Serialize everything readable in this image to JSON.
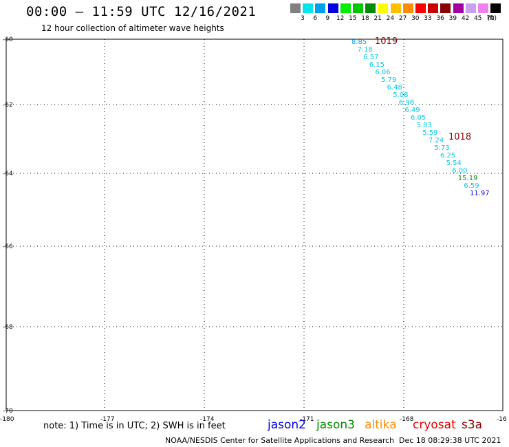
{
  "header": {
    "title": "00:00 – 11:59 UTC 12/16/2021",
    "subtitle": "12 hour collection of altimeter wave heights"
  },
  "legend": {
    "unit": "(ft)",
    "items": [
      {
        "color": "#808080",
        "label": "3"
      },
      {
        "color": "#00e5ee",
        "label": "6"
      },
      {
        "color": "#00a0f0",
        "label": "9"
      },
      {
        "color": "#0000e0",
        "label": "12"
      },
      {
        "color": "#00ee00",
        "label": "15"
      },
      {
        "color": "#00c800",
        "label": "18"
      },
      {
        "color": "#008b00",
        "label": "21"
      },
      {
        "color": "#ffff00",
        "label": "24"
      },
      {
        "color": "#ffc000",
        "label": "27"
      },
      {
        "color": "#ff8c00",
        "label": "30"
      },
      {
        "color": "#ff0000",
        "label": "33"
      },
      {
        "color": "#cd0000",
        "label": "36"
      },
      {
        "color": "#8b0000",
        "label": "39"
      },
      {
        "color": "#a000a0",
        "label": "42"
      },
      {
        "color": "#c8a0f0",
        "label": "45"
      },
      {
        "color": "#f080f0",
        "label": "70"
      },
      {
        "color": "#000000",
        "label": ""
      }
    ]
  },
  "map": {
    "lat_labels": [
      "-60",
      "-62",
      "-64",
      "-66",
      "-68",
      "-70"
    ],
    "lon_labels": [
      "-180",
      "-177",
      "-174",
      "-171",
      "-168",
      "-16"
    ],
    "pressure_labels": [
      {
        "text": "1019",
        "color": "#8b0000"
      },
      {
        "text": "1018",
        "color": "#8b0000"
      }
    ],
    "wave_heights": [
      {
        "value": "8.85",
        "color": "#00a0f0"
      },
      {
        "value": "7.18",
        "color": "#00c8e8"
      },
      {
        "value": "6.57",
        "color": "#00c8e8"
      },
      {
        "value": "6.15",
        "color": "#00c8e8"
      },
      {
        "value": "6.06",
        "color": "#00c8e8"
      },
      {
        "value": "5.79",
        "color": "#00c8e8"
      },
      {
        "value": "6.48",
        "color": "#00c8e8"
      },
      {
        "value": "5.08",
        "color": "#00c8e8"
      },
      {
        "value": "6.98",
        "color": "#00c8e8"
      },
      {
        "value": "6.49",
        "color": "#00c8e8"
      },
      {
        "value": "6.05",
        "color": "#00c8e8"
      },
      {
        "value": "5.83",
        "color": "#00c8e8"
      },
      {
        "value": "5.59",
        "color": "#00c8e8"
      },
      {
        "value": "7.24",
        "color": "#00c8e8"
      },
      {
        "value": "5.73",
        "color": "#00c8e8"
      },
      {
        "value": "6.25",
        "color": "#00c8e8"
      },
      {
        "value": "5.54",
        "color": "#00c8e8"
      },
      {
        "value": "6.00",
        "color": "#00c8e8"
      },
      {
        "value": "15.19",
        "color": "#008b00"
      },
      {
        "value": "6.59",
        "color": "#00c8e8"
      },
      {
        "value": "11.97",
        "color": "#0000cd"
      }
    ]
  },
  "footer": {
    "note": "note: 1) Time is in UTC; 2) SWH is in feet",
    "satellites": [
      {
        "name": "jason2",
        "color": "#0000e0"
      },
      {
        "name": "jason3",
        "color": "#008b00"
      },
      {
        "name": "altika",
        "color": "#ff8c00"
      },
      {
        "name": "cryosat",
        "color": "#e00000"
      },
      {
        "name": "s3a",
        "color": "#8b0000"
      }
    ],
    "credit": "NOAA/NESDIS Center for Satellite Applications and Research",
    "timestamp": "Dec 18 08:29:38 UTC 2021"
  }
}
